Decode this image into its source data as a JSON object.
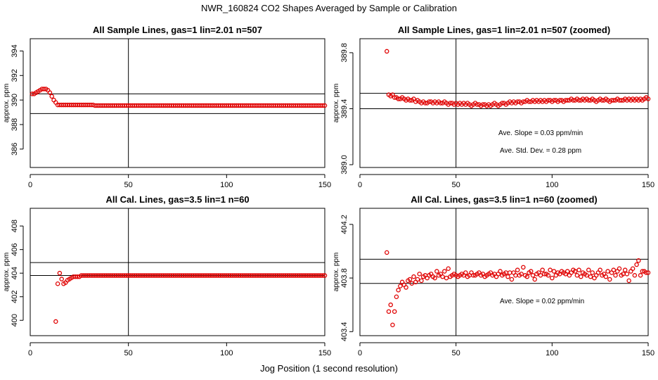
{
  "figure": {
    "title": "NWR_160824  CO2 Shapes Averaged by Sample or Calibration",
    "xlabel": "Jog Position (1 second resolution)"
  },
  "chart_data": [
    {
      "type": "scatter",
      "title": "All Sample Lines, gas=1 lin=2.01 n=507",
      "ylabel": "approx. ppm",
      "xlim": [
        0,
        150
      ],
      "ylim": [
        384.5,
        395
      ],
      "xticks": [
        0,
        50,
        100,
        150
      ],
      "yticks": [
        386,
        388,
        390,
        392,
        394
      ],
      "hlines": [
        390.5,
        388.9
      ],
      "vlines": [
        50
      ],
      "annotations": [],
      "point_color": "#e00000",
      "x": [
        1,
        2,
        3,
        4,
        5,
        6,
        7,
        8,
        9,
        10,
        11,
        12,
        13,
        14,
        15,
        16,
        17,
        18,
        19,
        20,
        21,
        22,
        23,
        24,
        25,
        26,
        27,
        28,
        29,
        30,
        31,
        32,
        33,
        34,
        35,
        36,
        37,
        38,
        39,
        40,
        41,
        42,
        43,
        44,
        45,
        46,
        47,
        48,
        49,
        50,
        51,
        52,
        53,
        54,
        55,
        56,
        57,
        58,
        59,
        60,
        61,
        62,
        63,
        64,
        65,
        66,
        67,
        68,
        69,
        70,
        71,
        72,
        73,
        74,
        75,
        76,
        77,
        78,
        79,
        80,
        81,
        82,
        83,
        84,
        85,
        86,
        87,
        88,
        89,
        90,
        91,
        92,
        93,
        94,
        95,
        96,
        97,
        98,
        99,
        100,
        101,
        102,
        103,
        104,
        105,
        106,
        107,
        108,
        109,
        110,
        111,
        112,
        113,
        114,
        115,
        116,
        117,
        118,
        119,
        120,
        121,
        122,
        123,
        124,
        125,
        126,
        127,
        128,
        129,
        130,
        131,
        132,
        133,
        134,
        135,
        136,
        137,
        138,
        139,
        140,
        141,
        142,
        143,
        144,
        145,
        146,
        147,
        148,
        149,
        150
      ],
      "y": [
        390.5,
        390.5,
        390.6,
        390.7,
        390.8,
        390.9,
        390.9,
        390.9,
        390.8,
        390.6,
        390.3,
        390.0,
        389.8,
        389.6,
        389.6,
        389.6,
        389.6,
        389.6,
        389.6,
        389.6,
        389.6,
        389.6,
        389.6,
        389.6,
        389.6,
        389.6,
        389.6,
        389.6,
        389.6,
        389.6,
        389.6,
        389.6,
        389.55,
        389.55,
        389.55,
        389.55,
        389.55,
        389.55,
        389.55,
        389.55,
        389.55,
        389.55,
        389.55,
        389.55,
        389.55,
        389.55,
        389.55,
        389.55,
        389.55,
        389.55,
        389.55,
        389.55,
        389.55,
        389.55,
        389.55,
        389.55,
        389.55,
        389.55,
        389.55,
        389.55,
        389.55,
        389.55,
        389.55,
        389.55,
        389.55,
        389.55,
        389.55,
        389.55,
        389.55,
        389.55,
        389.55,
        389.55,
        389.55,
        389.55,
        389.55,
        389.55,
        389.55,
        389.55,
        389.55,
        389.55,
        389.55,
        389.55,
        389.55,
        389.55,
        389.55,
        389.55,
        389.55,
        389.55,
        389.55,
        389.55,
        389.55,
        389.55,
        389.55,
        389.55,
        389.55,
        389.55,
        389.55,
        389.55,
        389.55,
        389.55,
        389.55,
        389.55,
        389.55,
        389.55,
        389.55,
        389.55,
        389.55,
        389.55,
        389.55,
        389.55,
        389.55,
        389.55,
        389.55,
        389.55,
        389.55,
        389.55,
        389.55,
        389.55,
        389.55,
        389.55,
        389.55,
        389.55,
        389.55,
        389.55,
        389.55,
        389.55,
        389.55,
        389.55,
        389.55,
        389.55,
        389.55,
        389.55,
        389.55,
        389.55,
        389.55,
        389.55,
        389.55,
        389.55,
        389.55,
        389.55,
        389.55,
        389.55,
        389.55,
        389.55,
        389.55,
        389.55,
        389.55,
        389.55,
        389.55,
        389.55
      ]
    },
    {
      "type": "scatter",
      "title": "All Sample Lines, gas=1 lin=2.01 n=507 (zoomed)",
      "ylabel": "approx. ppm",
      "xlim": [
        0,
        150
      ],
      "ylim": [
        388.98,
        389.9
      ],
      "xticks": [
        0,
        50,
        100,
        150
      ],
      "yticks": [
        389.0,
        389.4,
        389.8
      ],
      "hlines": [
        389.51,
        389.4
      ],
      "vlines": [
        50
      ],
      "annotations": [
        "Ave. Slope =  0.03  ppm/min",
        "Ave. Std. Dev. =  0.28  ppm"
      ],
      "point_color": "#e00000",
      "x": [
        14,
        15,
        16,
        17,
        18,
        19,
        20,
        21,
        22,
        23,
        24,
        25,
        26,
        27,
        28,
        29,
        30,
        31,
        32,
        33,
        34,
        35,
        36,
        37,
        38,
        39,
        40,
        41,
        42,
        43,
        44,
        45,
        46,
        47,
        48,
        49,
        50,
        51,
        52,
        53,
        54,
        55,
        56,
        57,
        58,
        59,
        60,
        61,
        62,
        63,
        64,
        65,
        66,
        67,
        68,
        69,
        70,
        71,
        72,
        73,
        74,
        75,
        76,
        77,
        78,
        79,
        80,
        81,
        82,
        83,
        84,
        85,
        86,
        87,
        88,
        89,
        90,
        91,
        92,
        93,
        94,
        95,
        96,
        97,
        98,
        99,
        100,
        101,
        102,
        103,
        104,
        105,
        106,
        107,
        108,
        109,
        110,
        111,
        112,
        113,
        114,
        115,
        116,
        117,
        118,
        119,
        120,
        121,
        122,
        123,
        124,
        125,
        126,
        127,
        128,
        129,
        130,
        131,
        132,
        133,
        134,
        135,
        136,
        137,
        138,
        139,
        140,
        141,
        142,
        143,
        144,
        145,
        146,
        147,
        148,
        149,
        150
      ],
      "y": [
        389.81,
        389.5,
        389.49,
        389.5,
        389.48,
        389.48,
        389.47,
        389.47,
        389.48,
        389.47,
        389.46,
        389.47,
        389.46,
        389.46,
        389.47,
        389.45,
        389.46,
        389.45,
        389.44,
        389.45,
        389.44,
        389.44,
        389.45,
        389.45,
        389.44,
        389.45,
        389.44,
        389.45,
        389.44,
        389.44,
        389.45,
        389.44,
        389.43,
        389.44,
        389.44,
        389.43,
        389.44,
        389.43,
        389.44,
        389.43,
        389.44,
        389.43,
        389.44,
        389.43,
        389.42,
        389.43,
        389.44,
        389.43,
        389.43,
        389.42,
        389.43,
        389.43,
        389.42,
        389.43,
        389.42,
        389.43,
        389.44,
        389.43,
        389.42,
        389.43,
        389.44,
        389.44,
        389.43,
        389.44,
        389.45,
        389.44,
        389.45,
        389.44,
        389.45,
        389.45,
        389.44,
        389.45,
        389.45,
        389.46,
        389.45,
        389.45,
        389.46,
        389.45,
        389.46,
        389.45,
        389.46,
        389.45,
        389.46,
        389.45,
        389.46,
        389.46,
        389.45,
        389.46,
        389.46,
        389.45,
        389.46,
        389.46,
        389.45,
        389.46,
        389.46,
        389.46,
        389.47,
        389.46,
        389.46,
        389.47,
        389.46,
        389.46,
        389.47,
        389.46,
        389.47,
        389.46,
        389.46,
        389.47,
        389.46,
        389.45,
        389.46,
        389.47,
        389.46,
        389.46,
        389.47,
        389.46,
        389.45,
        389.46,
        389.46,
        389.46,
        389.47,
        389.46,
        389.46,
        389.46,
        389.47,
        389.46,
        389.47,
        389.46,
        389.47,
        389.46,
        389.47,
        389.46,
        389.47,
        389.46,
        389.47,
        389.48,
        389.47
      ]
    },
    {
      "type": "scatter",
      "title": "All Cal. Lines, gas=3.5 lin=1 n=60",
      "ylabel": "approx. ppm",
      "xlim": [
        0,
        150
      ],
      "ylim": [
        398.7,
        409.5
      ],
      "xticks": [
        0,
        50,
        100,
        150
      ],
      "yticks": [
        400,
        402,
        404,
        406,
        408
      ],
      "hlines": [
        404.9,
        403.8
      ],
      "vlines": [
        50
      ],
      "annotations": [],
      "point_color": "#e00000",
      "x": [
        13,
        14,
        15,
        16,
        17,
        18,
        19,
        20,
        21,
        22,
        23,
        24,
        25,
        26,
        27,
        28,
        29,
        30,
        31,
        32,
        33,
        34,
        35,
        36,
        37,
        38,
        39,
        40,
        41,
        42,
        43,
        44,
        45,
        46,
        47,
        48,
        49,
        50,
        51,
        52,
        53,
        54,
        55,
        56,
        57,
        58,
        59,
        60,
        61,
        62,
        63,
        64,
        65,
        66,
        67,
        68,
        69,
        70,
        71,
        72,
        73,
        74,
        75,
        76,
        77,
        78,
        79,
        80,
        81,
        82,
        83,
        84,
        85,
        86,
        87,
        88,
        89,
        90,
        91,
        92,
        93,
        94,
        95,
        96,
        97,
        98,
        99,
        100,
        101,
        102,
        103,
        104,
        105,
        106,
        107,
        108,
        109,
        110,
        111,
        112,
        113,
        114,
        115,
        116,
        117,
        118,
        119,
        120,
        121,
        122,
        123,
        124,
        125,
        126,
        127,
        128,
        129,
        130,
        131,
        132,
        133,
        134,
        135,
        136,
        137,
        138,
        139,
        140,
        141,
        142,
        143,
        144,
        145,
        146,
        147,
        148,
        149,
        150
      ],
      "y": [
        399.9,
        403.1,
        404.0,
        403.5,
        403.1,
        403.2,
        403.4,
        403.5,
        403.6,
        403.7,
        403.7,
        403.7,
        403.7,
        403.8,
        403.8,
        403.8,
        403.8,
        403.8,
        403.8,
        403.8,
        403.8,
        403.8,
        403.8,
        403.8,
        403.8,
        403.8,
        403.8,
        403.8,
        403.8,
        403.8,
        403.8,
        403.8,
        403.8,
        403.8,
        403.8,
        403.8,
        403.8,
        403.8,
        403.8,
        403.8,
        403.8,
        403.8,
        403.8,
        403.8,
        403.8,
        403.8,
        403.8,
        403.8,
        403.8,
        403.8,
        403.8,
        403.8,
        403.8,
        403.8,
        403.8,
        403.8,
        403.8,
        403.8,
        403.8,
        403.8,
        403.8,
        403.8,
        403.8,
        403.8,
        403.8,
        403.8,
        403.8,
        403.8,
        403.8,
        403.8,
        403.8,
        403.8,
        403.8,
        403.8,
        403.8,
        403.8,
        403.8,
        403.8,
        403.8,
        403.8,
        403.8,
        403.8,
        403.8,
        403.8,
        403.8,
        403.8,
        403.8,
        403.8,
        403.8,
        403.8,
        403.8,
        403.8,
        403.8,
        403.8,
        403.8,
        403.8,
        403.8,
        403.8,
        403.8,
        403.8,
        403.8,
        403.8,
        403.8,
        403.8,
        403.8,
        403.8,
        403.8,
        403.8,
        403.8,
        403.8,
        403.8,
        403.8,
        403.8,
        403.8,
        403.8,
        403.8,
        403.8,
        403.8,
        403.8,
        403.8,
        403.8,
        403.8,
        403.8,
        403.8,
        403.8,
        403.8,
        403.8,
        403.8,
        403.8,
        403.8,
        403.8,
        403.8,
        403.8,
        403.8,
        403.8,
        403.8,
        403.8,
        403.8
      ]
    },
    {
      "type": "scatter",
      "title": "All Cal. Lines, gas=3.5 lin=1 n=60 (zoomed)",
      "ylabel": "approx. ppm",
      "xlim": [
        0,
        150
      ],
      "ylim": [
        403.37,
        404.32
      ],
      "xticks": [
        0,
        50,
        100,
        150
      ],
      "yticks": [
        403.4,
        403.8,
        404.2
      ],
      "hlines": [
        403.94,
        403.76
      ],
      "vlines": [
        50
      ],
      "annotations": [
        "Ave. Slope =  0.02  ppm/min"
      ],
      "point_color": "#e00000",
      "x": [
        14,
        15,
        16,
        17,
        18,
        19,
        20,
        21,
        22,
        23,
        24,
        25,
        26,
        27,
        28,
        29,
        30,
        31,
        32,
        33,
        34,
        35,
        36,
        37,
        38,
        39,
        40,
        41,
        42,
        43,
        44,
        45,
        46,
        47,
        48,
        49,
        50,
        51,
        52,
        53,
        54,
        55,
        56,
        57,
        58,
        59,
        60,
        61,
        62,
        63,
        64,
        65,
        66,
        67,
        68,
        69,
        70,
        71,
        72,
        73,
        74,
        75,
        76,
        77,
        78,
        79,
        80,
        81,
        82,
        83,
        84,
        85,
        86,
        87,
        88,
        89,
        90,
        91,
        92,
        93,
        94,
        95,
        96,
        97,
        98,
        99,
        100,
        101,
        102,
        103,
        104,
        105,
        106,
        107,
        108,
        109,
        110,
        111,
        112,
        113,
        114,
        115,
        116,
        117,
        118,
        119,
        120,
        121,
        122,
        123,
        124,
        125,
        126,
        127,
        128,
        129,
        130,
        131,
        132,
        133,
        134,
        135,
        136,
        137,
        138,
        139,
        140,
        141,
        142,
        143,
        144,
        145,
        146,
        147,
        148,
        149,
        150
      ],
      "y": [
        403.99,
        403.55,
        403.6,
        403.45,
        403.55,
        403.66,
        403.71,
        403.74,
        403.77,
        403.75,
        403.73,
        403.78,
        403.79,
        403.76,
        403.81,
        403.77,
        403.79,
        403.83,
        403.78,
        403.81,
        403.82,
        403.8,
        403.82,
        403.83,
        403.81,
        403.8,
        403.85,
        403.82,
        403.83,
        403.81,
        403.85,
        403.8,
        403.87,
        403.81,
        403.82,
        403.83,
        403.82,
        403.81,
        403.82,
        403.83,
        403.82,
        403.84,
        403.81,
        403.82,
        403.84,
        403.82,
        403.82,
        403.83,
        403.84,
        403.82,
        403.83,
        403.81,
        403.82,
        403.83,
        403.84,
        403.82,
        403.83,
        403.81,
        403.83,
        403.85,
        403.82,
        403.83,
        403.84,
        403.81,
        403.84,
        403.79,
        403.84,
        403.82,
        403.86,
        403.82,
        403.83,
        403.88,
        403.82,
        403.81,
        403.84,
        403.85,
        403.82,
        403.79,
        403.83,
        403.84,
        403.82,
        403.86,
        403.83,
        403.83,
        403.82,
        403.86,
        403.8,
        403.85,
        403.82,
        403.84,
        403.83,
        403.85,
        403.84,
        403.83,
        403.85,
        403.82,
        403.84,
        403.86,
        403.85,
        403.82,
        403.86,
        403.81,
        403.84,
        403.83,
        403.82,
        403.86,
        403.81,
        403.84,
        403.8,
        403.82,
        403.84,
        403.86,
        403.82,
        403.83,
        403.81,
        403.85,
        403.79,
        403.84,
        403.86,
        403.82,
        403.85,
        403.87,
        403.82,
        403.83,
        403.86,
        403.83,
        403.78,
        403.85,
        403.87,
        403.82,
        403.9,
        403.93,
        403.82,
        403.85,
        403.85,
        403.84,
        403.84
      ]
    }
  ]
}
